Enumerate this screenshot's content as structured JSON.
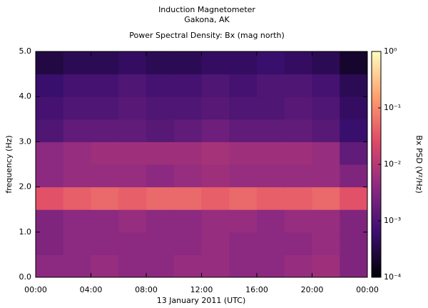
{
  "chart_data": {
    "type": "heatmap",
    "title": "Induction Magnetometer",
    "subtitle": "Gakona, AK",
    "plot_title": "Power Spectral Density: Bx (mag north)",
    "x_label": "13 January 2011 (UTC)",
    "y_label": "frequency (Hz)",
    "colorbar_label": "Bx PSD (V²/Hz)",
    "xbins": [
      0,
      2,
      4,
      6,
      8,
      10,
      12,
      14,
      16,
      18,
      20,
      22,
      24
    ],
    "ybins": [
      0,
      0.5,
      1,
      1.5,
      2,
      2.5,
      3,
      3.5,
      4,
      4.5,
      5
    ],
    "z": [
      [
        0.004,
        0.004,
        0.005,
        0.004,
        0.004,
        0.005,
        0.005,
        0.004,
        0.004,
        0.005,
        0.006,
        0.003
      ],
      [
        0.003,
        0.004,
        0.004,
        0.004,
        0.004,
        0.004,
        0.005,
        0.004,
        0.004,
        0.004,
        0.005,
        0.003
      ],
      [
        0.003,
        0.004,
        0.004,
        0.005,
        0.004,
        0.004,
        0.005,
        0.005,
        0.004,
        0.005,
        0.005,
        0.003
      ],
      [
        0.03,
        0.04,
        0.05,
        0.04,
        0.05,
        0.05,
        0.04,
        0.05,
        0.04,
        0.04,
        0.05,
        0.03
      ],
      [
        0.004,
        0.005,
        0.005,
        0.005,
        0.004,
        0.005,
        0.006,
        0.005,
        0.005,
        0.005,
        0.005,
        0.003
      ],
      [
        0.004,
        0.005,
        0.006,
        0.006,
        0.006,
        0.006,
        0.007,
        0.006,
        0.006,
        0.006,
        0.005,
        0.0015
      ],
      [
        0.001,
        0.0015,
        0.0015,
        0.0015,
        0.0012,
        0.0015,
        0.002,
        0.0015,
        0.0015,
        0.0015,
        0.0012,
        0.0006
      ],
      [
        0.0008,
        0.001,
        0.001,
        0.0012,
        0.001,
        0.001,
        0.0012,
        0.001,
        0.001,
        0.0012,
        0.001,
        0.0005
      ],
      [
        0.0006,
        0.0008,
        0.0008,
        0.001,
        0.0008,
        0.0008,
        0.001,
        0.0008,
        0.001,
        0.001,
        0.0008,
        0.0004
      ],
      [
        0.0003,
        0.0004,
        0.0004,
        0.0005,
        0.0004,
        0.0004,
        0.0005,
        0.0005,
        0.0006,
        0.0005,
        0.0004,
        0.0002
      ]
    ],
    "xlim": [
      0,
      24
    ],
    "xticks": [
      {
        "value": 0,
        "label": "00:00"
      },
      {
        "value": 4,
        "label": "04:00"
      },
      {
        "value": 8,
        "label": "08:00"
      },
      {
        "value": 12,
        "label": "12:00"
      },
      {
        "value": 16,
        "label": "16:00"
      },
      {
        "value": 20,
        "label": "20:00"
      },
      {
        "value": 24,
        "label": "00:00"
      }
    ],
    "ylim": [
      0,
      5
    ],
    "yticks": [
      {
        "value": 0,
        "label": "0.0"
      },
      {
        "value": 1,
        "label": "1.0"
      },
      {
        "value": 2,
        "label": "2.0"
      },
      {
        "value": 3,
        "label": "3.0"
      },
      {
        "value": 4,
        "label": "4.0"
      },
      {
        "value": 5,
        "label": "5.0"
      }
    ],
    "clim": [
      0.0001,
      1
    ],
    "color_scale": "log",
    "cticks": [
      {
        "value": 0.0001,
        "label": "10⁻⁴"
      },
      {
        "value": 0.001,
        "label": "10⁻³"
      },
      {
        "value": 0.01,
        "label": "10⁻²"
      },
      {
        "value": 0.1,
        "label": "10⁻¹"
      },
      {
        "value": 1,
        "label": "10⁰"
      }
    ],
    "colormap": [
      "#000004",
      "#3b0f70",
      "#8c2981",
      "#de4968",
      "#fe9f6d",
      "#fcfdbf"
    ]
  }
}
